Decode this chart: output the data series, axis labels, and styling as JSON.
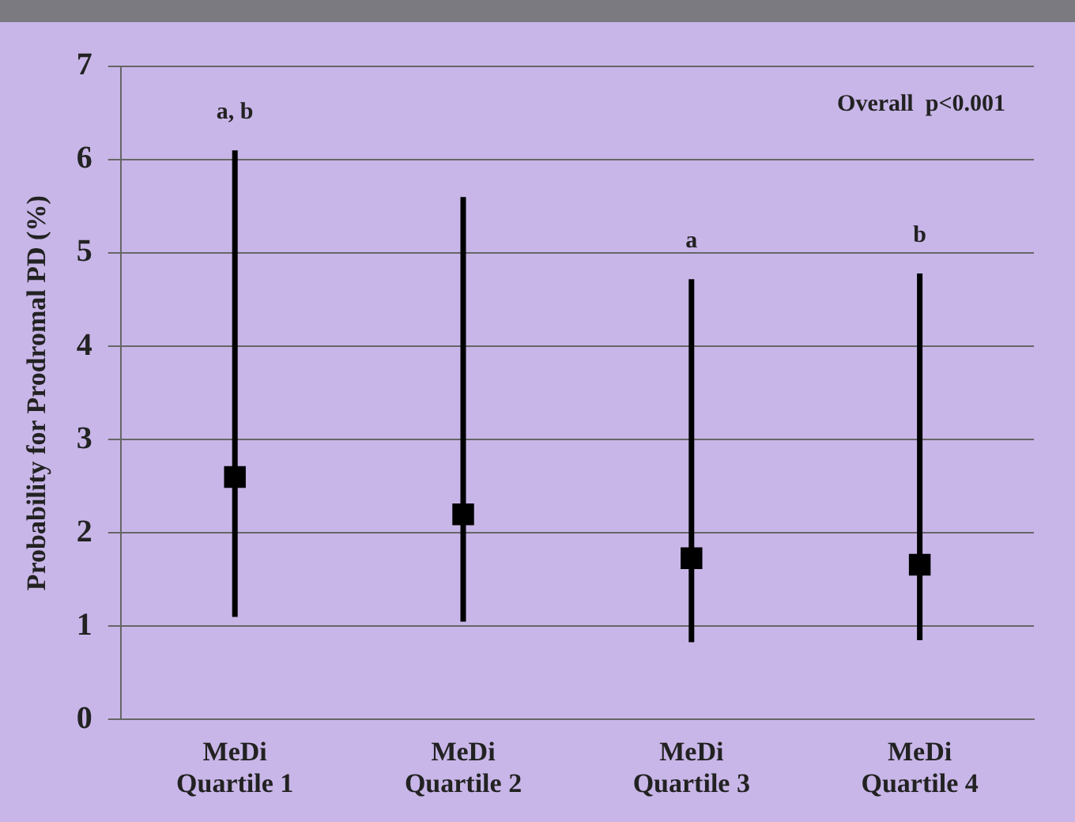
{
  "chart_data": {
    "type": "scatter",
    "ylabel": "Probability for Prodromal PD (%)",
    "categories": [
      "MeDi Quartile 1",
      "MeDi Quartile 2",
      "MeDi Quartile 3",
      "MeDi Quartile 4"
    ],
    "series": [
      {
        "color": "#000000",
        "values": [
          2.6,
          2.2,
          1.73,
          1.66
        ],
        "errors": [
          [
            1.1,
            6.1
          ],
          [
            1.05,
            5.6
          ],
          [
            0.83,
            4.72
          ],
          [
            0.85,
            4.78
          ]
        ]
      }
    ],
    "ylim": [
      0,
      7
    ],
    "yticks": [
      0,
      1,
      2,
      3,
      4,
      5,
      6,
      7
    ],
    "grid": "y",
    "marker": "square",
    "legend": false,
    "annotations": [
      "a, b",
      "a",
      "b",
      "Overall  p<0.001"
    ]
  }
}
